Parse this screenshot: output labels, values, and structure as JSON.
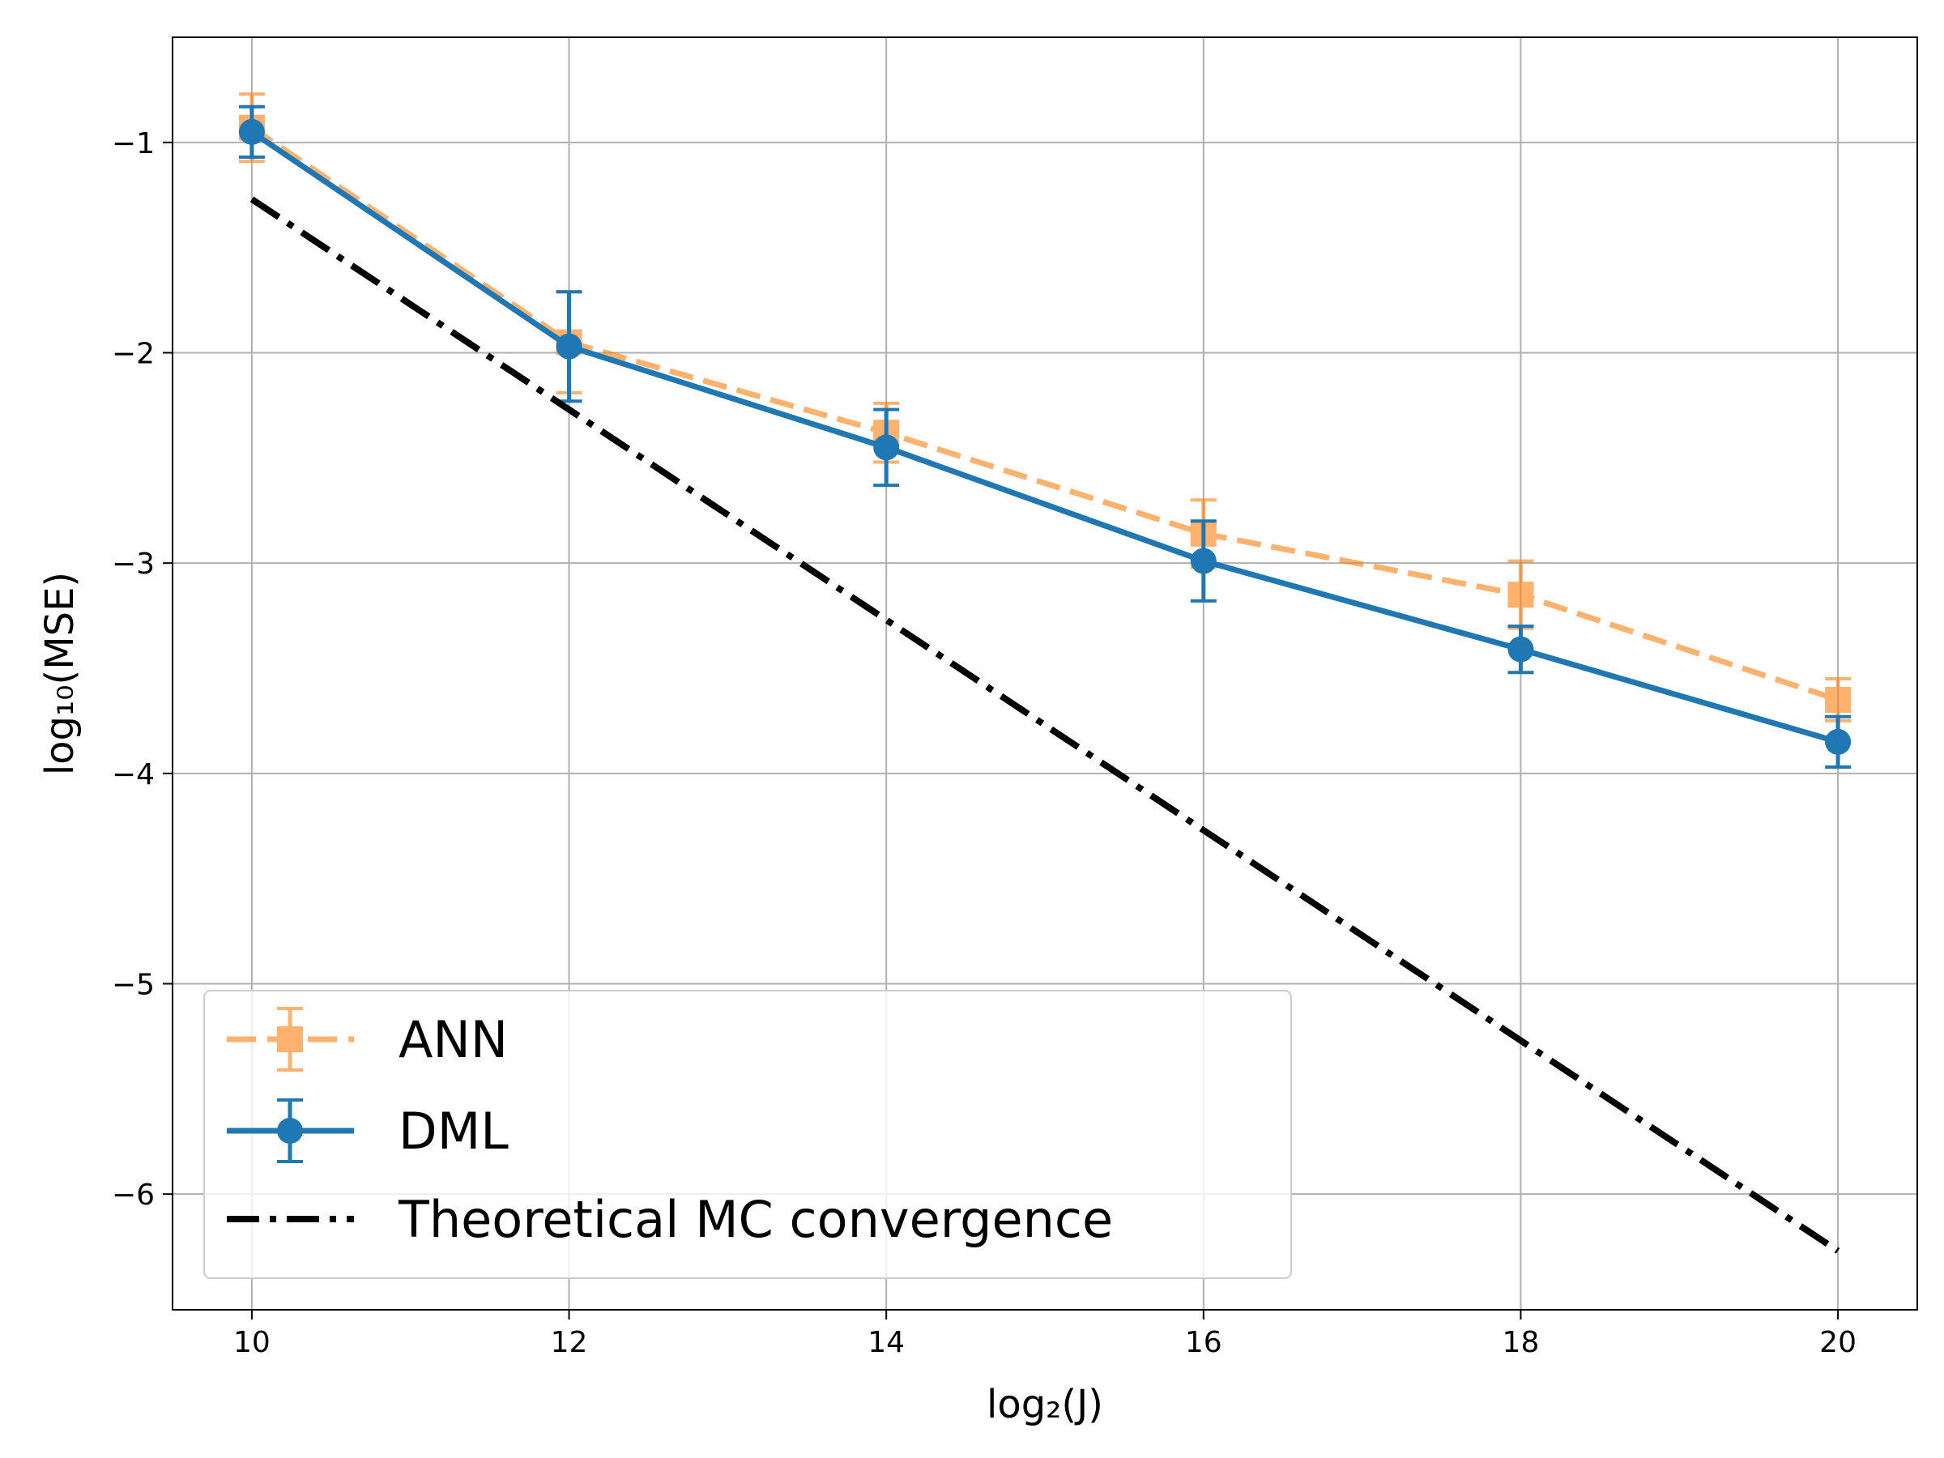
{
  "chart_data": {
    "type": "line",
    "title": "",
    "xlabel": "log₂(J)",
    "ylabel": "log₁₀(MSE)",
    "xlim": [
      9.5,
      20.5
    ],
    "ylim": [
      -6.55,
      -0.5
    ],
    "xticks": [
      10,
      12,
      14,
      16,
      18,
      20
    ],
    "yticks": [
      -1,
      -2,
      -3,
      -4,
      -5,
      -6
    ],
    "xtick_labels": [
      "10",
      "12",
      "14",
      "16",
      "18",
      "20"
    ],
    "ytick_labels": [
      "−1",
      "−2",
      "−3",
      "−4",
      "−5",
      "−6"
    ],
    "grid": true,
    "legend_position": "lower-left",
    "x": [
      10,
      12,
      14,
      16,
      18,
      20
    ],
    "series": [
      {
        "name": "ANN",
        "values": [
          -0.93,
          -1.95,
          -2.38,
          -2.86,
          -3.15,
          -3.65
        ],
        "errors": [
          0.16,
          0.24,
          0.14,
          0.16,
          0.16,
          0.1
        ],
        "color": "#ff7f0e",
        "style": "dashed",
        "marker": "square",
        "opacity": 0.6
      },
      {
        "name": "DML",
        "values": [
          -0.95,
          -1.97,
          -2.45,
          -2.99,
          -3.41,
          -3.85
        ],
        "errors": [
          0.12,
          0.26,
          0.18,
          0.19,
          0.11,
          0.12
        ],
        "color": "#1f77b4",
        "style": "solid",
        "marker": "circle",
        "opacity": 1
      },
      {
        "name": "Theoretical MC convergence",
        "values": [
          -1.27,
          -2.27,
          -3.27,
          -4.27,
          -5.27,
          -6.27
        ],
        "color": "#000000",
        "style": "dashdot",
        "marker": "none",
        "opacity": 1
      }
    ]
  }
}
